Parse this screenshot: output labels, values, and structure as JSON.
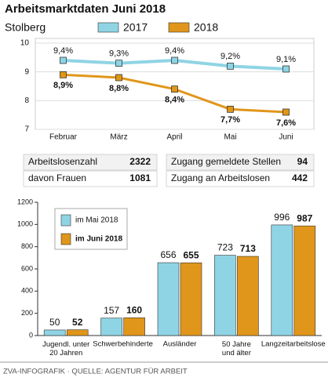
{
  "title": "Arbeitsmarktdaten Juni 2018",
  "chart_data": [
    {
      "type": "line",
      "title": "Stolberg",
      "categories": [
        "Februar",
        "März",
        "April",
        "Mai",
        "Juni"
      ],
      "series": [
        {
          "name": "2017",
          "color": "#8fd4e4",
          "values": [
            9.4,
            9.3,
            9.4,
            9.2,
            9.1
          ],
          "value_labels": [
            "9,4%",
            "9,3%",
            "9,4%",
            "9,2%",
            "9,1%"
          ]
        },
        {
          "name": "2018",
          "color": "#e0961a",
          "values": [
            8.9,
            8.8,
            8.4,
            7.7,
            7.6
          ],
          "value_labels": [
            "8,9%",
            "8,8%",
            "8,4%",
            "7,7%",
            "7,6%"
          ]
        }
      ],
      "ylim": [
        7,
        10
      ],
      "yticks": [
        7,
        8,
        9,
        10
      ],
      "grid": true
    },
    {
      "type": "bar",
      "categories": [
        "Jugendl. unter\n20 Jahren",
        "Schwerbehinderte",
        "Ausländer",
        "50 Jahre\nund älter",
        "Langzeitarbeitslose"
      ],
      "series": [
        {
          "name": "im Mai 2018",
          "color": "#8fd4e4",
          "values": [
            50,
            157,
            656,
            723,
            996
          ]
        },
        {
          "name": "im Juni 2018",
          "color": "#e0961a",
          "values": [
            52,
            160,
            655,
            713,
            987
          ]
        }
      ],
      "ylim": [
        0,
        1200
      ],
      "yticks": [
        0,
        200,
        400,
        600,
        800,
        1000,
        1200
      ],
      "grid": false
    }
  ],
  "table": {
    "rows": [
      [
        "Arbeitslosenzahl",
        2322
      ],
      [
        "davon Frauen",
        1081
      ],
      [
        "Zugang gemeldete Stellen",
        94
      ],
      [
        "Zugang an Arbeitslosen",
        442
      ]
    ]
  },
  "footer": "ZVA-INFOGRAFIK · QUELLE: AGENTUR FÜR ARBEIT"
}
